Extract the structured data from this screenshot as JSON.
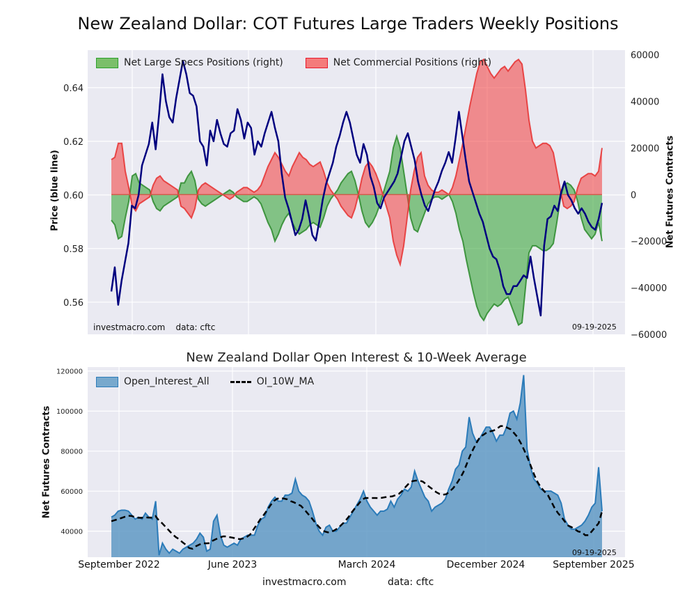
{
  "page": {
    "title": "New Zealand Dollar: COT Futures Large Traders Weekly Positions",
    "footer_left": "investmacro.com",
    "footer_right": "data: cftc"
  },
  "chart_data": [
    {
      "type": "area",
      "title": "",
      "ylabel_left": "Price (blue line)",
      "ylabel_right": "Net Futures Contracts",
      "ylim_left": [
        0.548,
        0.654
      ],
      "ylim_right": [
        -60000,
        62000
      ],
      "left_ticks": [
        "0.56",
        "0.58",
        "0.60",
        "0.62",
        "0.64"
      ],
      "left_tick_values": [
        0.56,
        0.58,
        0.6,
        0.62,
        0.64
      ],
      "right_ticks": [
        "−60000",
        "−40000",
        "−20000",
        "0",
        "20000",
        "40000",
        "60000"
      ],
      "right_tick_values": [
        -60000,
        -40000,
        -20000,
        0,
        20000,
        40000,
        60000
      ],
      "grid": true,
      "legend_position": "top-left",
      "legend": [
        "Net Large Specs Positions (right)",
        "Net Commercial Positions (right)"
      ],
      "annotation_left": "investmacro.com    data: cftc",
      "annotation_right": "09-19-2025",
      "x_start": "2022-09",
      "x_end": "2025-09",
      "series": [
        {
          "name": "Net Large Specs Positions (right)",
          "color": "#2ca02c",
          "values": [
            -11000,
            -13000,
            -19000,
            -18000,
            -10000,
            -3000,
            8000,
            9000,
            5000,
            4000,
            3000,
            2000,
            -3000,
            -6000,
            -7000,
            -5000,
            -4000,
            -3000,
            -2000,
            -1000,
            5000,
            5000,
            8000,
            10000,
            6000,
            -2000,
            -4000,
            -5000,
            -4000,
            -3000,
            -2000,
            -1000,
            0,
            1000,
            2000,
            1000,
            -1000,
            -2000,
            -3000,
            -3000,
            -2000,
            -1000,
            -2000,
            -4000,
            -8000,
            -12000,
            -15000,
            -20000,
            -17000,
            -13000,
            -10000,
            -8000,
            -12000,
            -15000,
            -17000,
            -16000,
            -15000,
            -13000,
            -12000,
            -13000,
            -14000,
            -10000,
            -5000,
            -2000,
            0,
            2000,
            5000,
            7000,
            9000,
            10000,
            6000,
            0,
            -7000,
            -12000,
            -14000,
            -12000,
            -9000,
            -5000,
            0,
            5000,
            10000,
            20000,
            25000,
            20000,
            10000,
            0,
            -10000,
            -15000,
            -16000,
            -12000,
            -8000,
            -4000,
            -2000,
            -1000,
            -1000,
            -2000,
            -1000,
            0,
            -3000,
            -8000,
            -15000,
            -20000,
            -28000,
            -35000,
            -42000,
            -48000,
            -52000,
            -54000,
            -51000,
            -49000,
            -47000,
            -48000,
            -47000,
            -45000,
            -44000,
            -48000,
            -52000,
            -56000,
            -55000,
            -40000,
            -25000,
            -22000,
            -22000,
            -23000,
            -24000,
            -24000,
            -23000,
            -21000,
            -12000,
            -2000,
            4000,
            5000,
            4000,
            2000,
            -3000,
            -10000,
            -15000,
            -17000,
            -19000,
            -17000,
            -12000,
            -20000
          ],
          "fill_base": 0
        },
        {
          "name": "Net Commercial Positions (right)",
          "color": "#e8192c",
          "values": [
            15000,
            16000,
            22000,
            22000,
            10000,
            3000,
            -5000,
            -7000,
            -4000,
            -3000,
            -2000,
            -1000,
            4000,
            7000,
            8000,
            6000,
            5000,
            4000,
            3000,
            2000,
            -5000,
            -6000,
            -8000,
            -10000,
            -6000,
            2000,
            4000,
            5000,
            4000,
            3000,
            2000,
            1000,
            0,
            -1000,
            -2000,
            -1000,
            1000,
            2000,
            3000,
            3000,
            2000,
            1000,
            2000,
            4000,
            8000,
            12000,
            15000,
            18000,
            16000,
            13000,
            10000,
            8000,
            12000,
            15000,
            18000,
            16000,
            15000,
            13000,
            12000,
            13000,
            14000,
            10000,
            5000,
            2000,
            0,
            -2000,
            -5000,
            -7000,
            -9000,
            -10000,
            -6000,
            0,
            7000,
            12000,
            14000,
            12000,
            9000,
            5000,
            0,
            -5000,
            -10000,
            -20000,
            -26000,
            -30000,
            -22000,
            -10000,
            2000,
            10000,
            16000,
            18000,
            8000,
            4000,
            2000,
            1000,
            1000,
            2000,
            1000,
            0,
            3000,
            8000,
            15000,
            22000,
            30000,
            38000,
            45000,
            52000,
            57000,
            58000,
            55000,
            52000,
            50000,
            52000,
            54000,
            55000,
            53000,
            55000,
            57000,
            58000,
            56000,
            45000,
            32000,
            23000,
            20000,
            21000,
            22000,
            22000,
            21000,
            18000,
            10000,
            2000,
            -5000,
            -6000,
            -5000,
            -3000,
            3000,
            7000,
            8000,
            9000,
            9000,
            8000,
            10000,
            20000
          ],
          "fill_base": 0
        },
        {
          "name": "",
          "axis": "left",
          "color": "#00007f",
          "values": [
            0.564,
            0.573,
            0.559,
            0.568,
            0.575,
            0.582,
            0.596,
            0.595,
            0.6,
            0.611,
            0.615,
            0.619,
            0.627,
            0.617,
            0.63,
            0.645,
            0.635,
            0.629,
            0.627,
            0.636,
            0.643,
            0.65,
            0.645,
            0.638,
            0.637,
            0.633,
            0.62,
            0.618,
            0.611,
            0.624,
            0.62,
            0.628,
            0.623,
            0.619,
            0.618,
            0.623,
            0.624,
            0.632,
            0.628,
            0.621,
            0.627,
            0.625,
            0.615,
            0.62,
            0.618,
            0.623,
            0.627,
            0.631,
            0.625,
            0.62,
            0.608,
            0.599,
            0.595,
            0.59,
            0.585,
            0.587,
            0.591,
            0.598,
            0.592,
            0.585,
            0.583,
            0.59,
            0.598,
            0.604,
            0.608,
            0.612,
            0.618,
            0.622,
            0.627,
            0.631,
            0.627,
            0.621,
            0.615,
            0.612,
            0.619,
            0.615,
            0.607,
            0.603,
            0.597,
            0.595,
            0.599,
            0.601,
            0.603,
            0.605,
            0.608,
            0.614,
            0.62,
            0.623,
            0.618,
            0.613,
            0.605,
            0.6,
            0.596,
            0.594,
            0.598,
            0.602,
            0.605,
            0.609,
            0.612,
            0.616,
            0.612,
            0.621,
            0.631,
            0.622,
            0.613,
            0.605,
            0.601,
            0.597,
            0.593,
            0.59,
            0.585,
            0.58,
            0.577,
            0.576,
            0.572,
            0.566,
            0.563,
            0.563,
            0.566,
            0.566,
            0.568,
            0.57,
            0.569,
            0.577,
            0.569,
            0.562,
            0.555,
            0.581,
            0.591,
            0.592,
            0.596,
            0.594,
            0.601,
            0.605,
            0.6,
            0.598,
            0.595,
            0.593,
            0.595,
            0.593,
            0.59,
            0.588,
            0.587,
            0.591,
            0.597
          ]
        }
      ]
    },
    {
      "type": "area",
      "title": "New Zealand Dollar Open Interest & 10-Week Average",
      "ylabel": "Net Futures Contracts",
      "ylim": [
        27000,
        122000
      ],
      "y_ticks": [
        "40000",
        "60000",
        "80000",
        "100000",
        "120000"
      ],
      "y_tick_values": [
        40000,
        60000,
        80000,
        100000,
        120000
      ],
      "x_ticks": [
        "September 2022",
        "June 2023",
        "March 2024",
        "December 2024",
        "September 2025"
      ],
      "grid": true,
      "legend_position": "top-left",
      "legend": [
        "Open_Interest_All",
        "OI_10W_MA"
      ],
      "annotation_right": "09-19-2025",
      "series": [
        {
          "name": "Open_Interest_All",
          "color": "#2b7bb9",
          "values": [
            47000,
            48000,
            50000,
            50500,
            50500,
            50000,
            48000,
            46000,
            47000,
            46000,
            49000,
            47000,
            46000,
            55000,
            28000,
            34000,
            31000,
            29000,
            31000,
            30000,
            29000,
            31000,
            32000,
            33000,
            34000,
            36000,
            39000,
            37000,
            30000,
            31000,
            45000,
            48000,
            38000,
            33000,
            32000,
            33000,
            34000,
            33000,
            36000,
            37000,
            38000,
            38000,
            38000,
            43000,
            46000,
            47000,
            52000,
            55000,
            57000,
            55000,
            55000,
            58000,
            58000,
            59000,
            66000,
            60000,
            58000,
            57000,
            55000,
            50000,
            44000,
            40000,
            38000,
            42000,
            43000,
            40000,
            40000,
            42000,
            44000,
            44000,
            47000,
            50000,
            53000,
            56000,
            60000,
            55000,
            52000,
            50000,
            48000,
            50000,
            50000,
            51000,
            55000,
            52000,
            56000,
            58000,
            61000,
            60000,
            62000,
            70000,
            65000,
            61000,
            57000,
            55000,
            50000,
            52000,
            53000,
            54000,
            56000,
            61000,
            65000,
            71000,
            73000,
            80000,
            82000,
            97000,
            89000,
            85000,
            86000,
            89000,
            92000,
            92000,
            89000,
            85000,
            88000,
            88000,
            92000,
            99000,
            100000,
            96000,
            104000,
            118000,
            81000,
            72000,
            66000,
            64000,
            61000,
            60000,
            60000,
            60000,
            59000,
            58000,
            54000,
            46000,
            43000,
            41000,
            41000,
            42000,
            43000,
            45000,
            48000,
            52000,
            54000,
            72000,
            50000
          ],
          "fill_base": 27000
        },
        {
          "name": "OI_10W_MA",
          "color": "#000000",
          "dash": true,
          "values": [
            45000,
            45500,
            46000,
            46600,
            47200,
            47700,
            47600,
            47000,
            46700,
            46700,
            46900,
            46800,
            46800,
            47600,
            45500,
            44000,
            42200,
            40400,
            38600,
            37100,
            36000,
            34500,
            33200,
            31600,
            31200,
            32500,
            33300,
            34000,
            33900,
            34000,
            35300,
            36100,
            36800,
            37400,
            37400,
            37000,
            36700,
            36300,
            36000,
            36400,
            37100,
            38300,
            40800,
            43300,
            45900,
            48000,
            50400,
            52900,
            55100,
            56200,
            56600,
            56300,
            55900,
            55000,
            54400,
            53500,
            52700,
            50900,
            48900,
            47000,
            44800,
            42800,
            41000,
            39900,
            39400,
            39700,
            40500,
            41600,
            43200,
            44800,
            46900,
            49300,
            51500,
            53500,
            55600,
            56600,
            56600,
            56600,
            56600,
            56500,
            56700,
            57000,
            57200,
            57400,
            58000,
            58700,
            60200,
            62200,
            64000,
            65000,
            65300,
            65300,
            64800,
            63500,
            62100,
            60900,
            59500,
            58600,
            58200,
            58500,
            59900,
            61500,
            63700,
            66300,
            69400,
            73500,
            77700,
            81200,
            84400,
            87200,
            88200,
            89400,
            89900,
            90300,
            91300,
            92500,
            92600,
            91700,
            90900,
            89000,
            87000,
            84000,
            80500,
            76700,
            72400,
            68000,
            64400,
            61700,
            59800,
            58000,
            54800,
            51500,
            49000,
            47100,
            44800,
            42800,
            42000,
            40900,
            39800,
            39600,
            38000,
            38000,
            40000,
            42000,
            44000,
            50000
          ]
        }
      ]
    }
  ]
}
